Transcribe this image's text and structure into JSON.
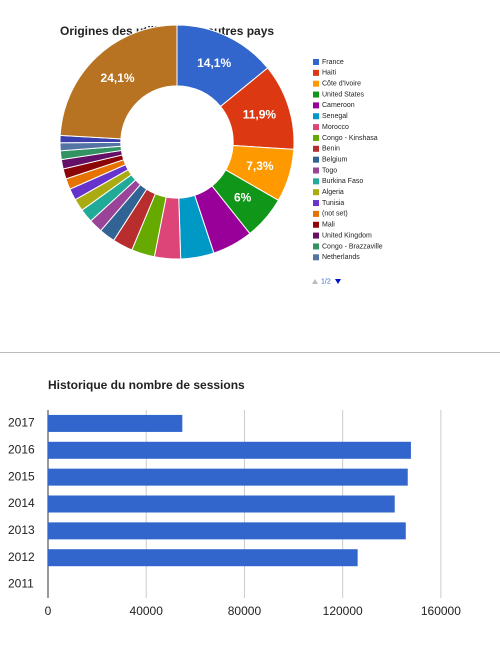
{
  "chart_data": [
    {
      "type": "pie",
      "title": "Origines des utilisateurs: autres pays",
      "categories": [
        "France",
        "Haiti",
        "Côte d'Ivoire",
        "United States",
        "Cameroon",
        "Senegal",
        "Morocco",
        "Congo - Kinshasa",
        "Benin",
        "Belgium",
        "Togo",
        "Burkina Faso",
        "Algeria",
        "Tunisia",
        "(not set)",
        "Mali",
        "United Kingdom",
        "Congo - Brazzaville",
        "Netherlands",
        null,
        null
      ],
      "values": [
        14.1,
        11.9,
        7.3,
        6,
        5.6,
        4.6,
        3.6,
        3.2,
        2.8,
        2.2,
        1.9,
        1.9,
        1.7,
        1.6,
        1.5,
        1.4,
        1.3,
        1.2,
        1.1,
        1.0,
        24.1
      ],
      "value_labels": [
        "14,1%",
        "11,9%",
        "7,3%",
        "6%",
        null,
        null,
        null,
        null,
        null,
        null,
        null,
        null,
        null,
        null,
        null,
        null,
        null,
        null,
        null,
        null,
        "24,1%"
      ],
      "colors": [
        "#3366cc",
        "#dc3912",
        "#ff9900",
        "#109618",
        "#990099",
        "#0099c6",
        "#dd4477",
        "#66aa00",
        "#b82e2e",
        "#316395",
        "#994499",
        "#22aa99",
        "#aaaa11",
        "#6633cc",
        "#e67300",
        "#8b0707",
        "#651067",
        "#329262",
        "#5574a6",
        "#3b3eac",
        "#b77322"
      ],
      "hole": 0.48,
      "legend_position": "right",
      "legend_page": "1/2"
    },
    {
      "type": "bar",
      "orientation": "horizontal",
      "title": "Historique du nombre de sessions",
      "categories": [
        "2017",
        "2016",
        "2015",
        "2014",
        "2013",
        "2012",
        "2011"
      ],
      "values": [
        54700,
        147800,
        146500,
        141200,
        145700,
        126100,
        0
      ],
      "color": "#3366cc",
      "xlim": [
        0,
        180000
      ],
      "xticks": [
        0,
        40000,
        80000,
        120000,
        160000
      ],
      "grid": true
    }
  ]
}
